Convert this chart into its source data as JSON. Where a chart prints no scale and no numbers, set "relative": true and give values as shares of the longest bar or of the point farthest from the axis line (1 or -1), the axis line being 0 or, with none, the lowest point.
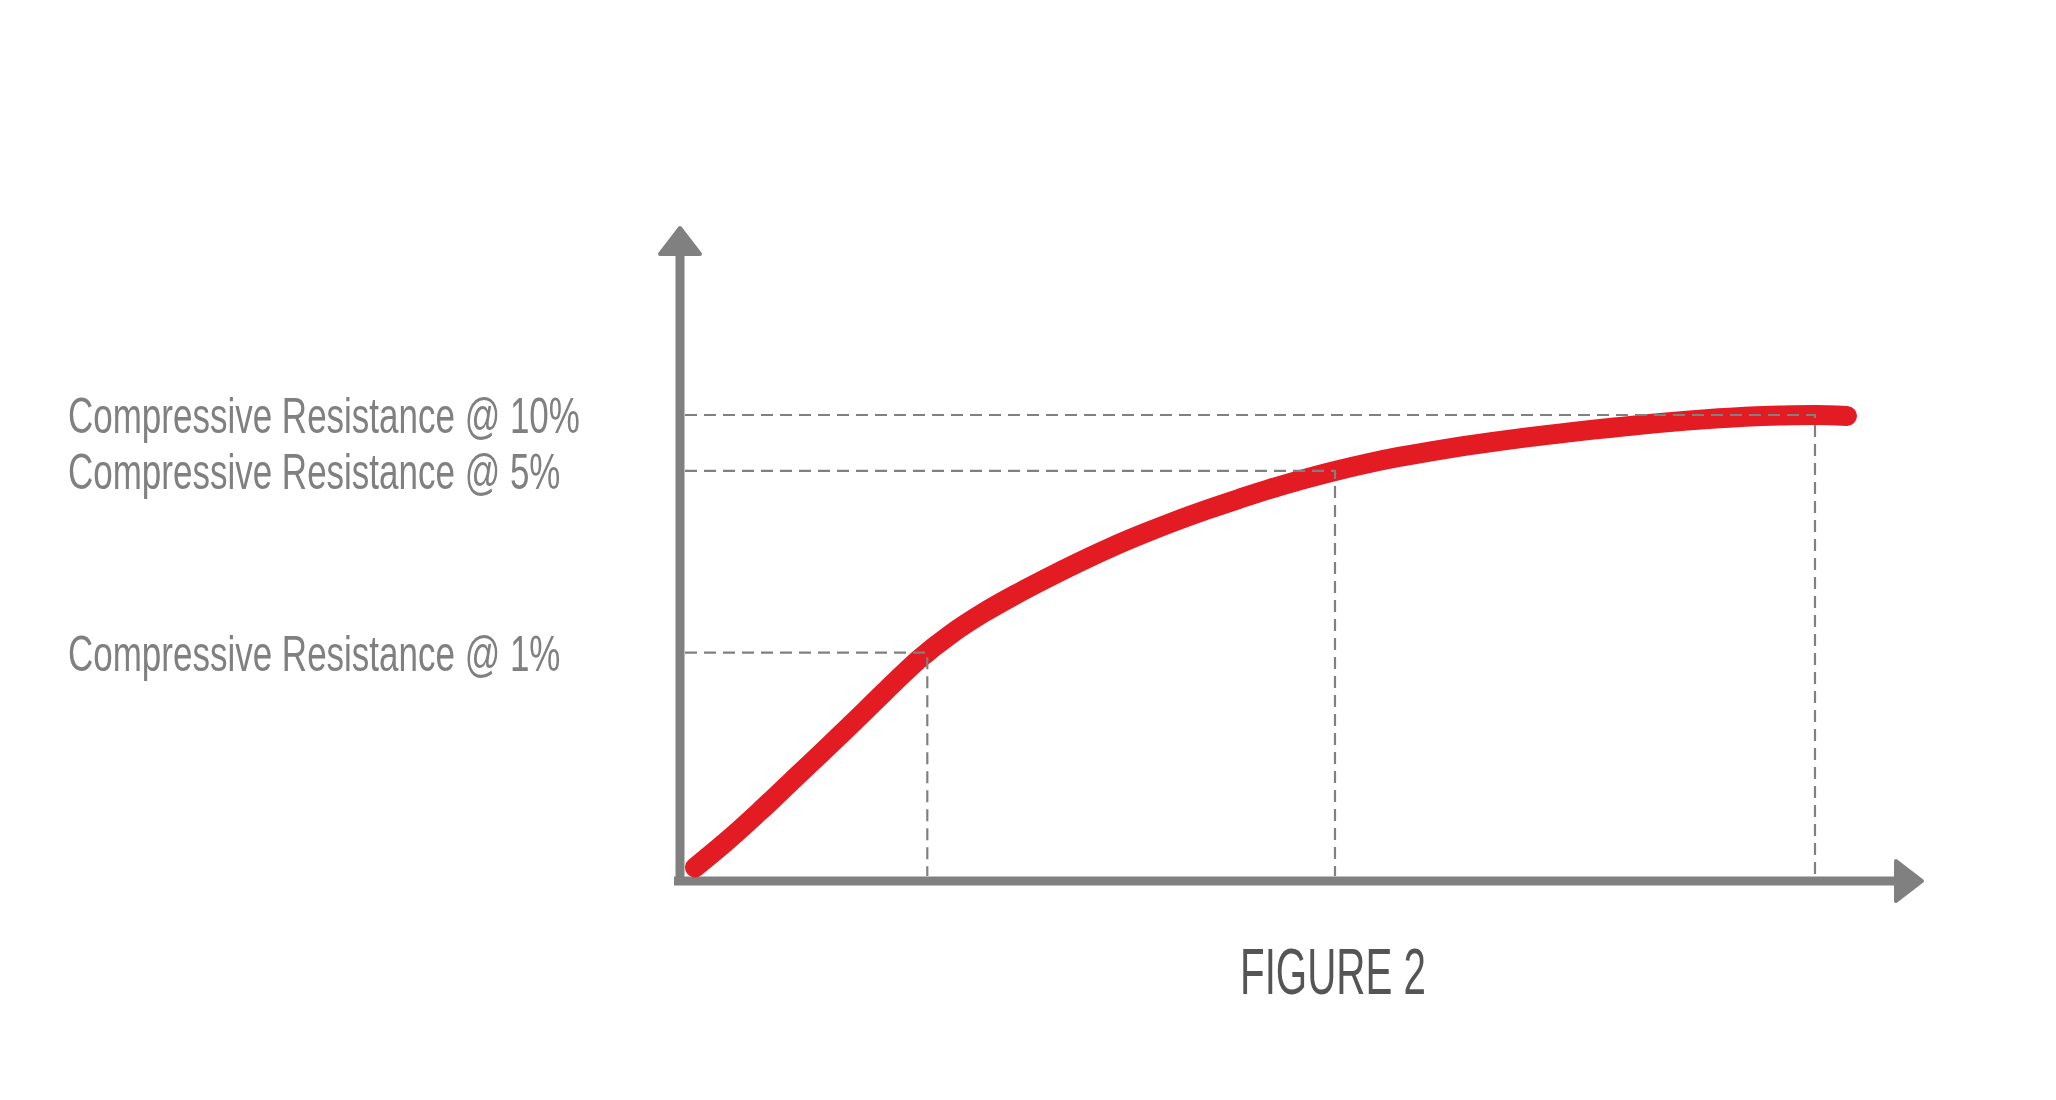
{
  "chart_data": {
    "type": "line",
    "title": "FIGURE 2",
    "relative": true,
    "categories": [
      null,
      null,
      null,
      null,
      null,
      null,
      null,
      null,
      null,
      null,
      null,
      null,
      null,
      null,
      null,
      null,
      null,
      null,
      null,
      null,
      null,
      null,
      null,
      null,
      null,
      null,
      null,
      null,
      null,
      null,
      null,
      null,
      null,
      null,
      null,
      null,
      null
    ],
    "series": [
      {
        "color": "#e31b23",
        "values": [
          0.029,
          0.086,
          0.148,
          0.213,
          0.278,
          0.344,
          0.411,
          0.476,
          0.53,
          0.575,
          0.614,
          0.65,
          0.684,
          0.716,
          0.745,
          0.772,
          0.797,
          0.82,
          0.842,
          0.862,
          0.88,
          0.896,
          0.91,
          0.922,
          0.933,
          0.943,
          0.952,
          0.96,
          0.968,
          0.975,
          0.982,
          0.988,
          0.993,
          0.997,
          0.999,
          1,
          0.998
        ]
      }
    ],
    "ref_lines": [
      {
        "axis": "y",
        "value": 1,
        "label": "Compressive Resistance @ 10%",
        "color": "#808080",
        "line_style": "dashed"
      },
      {
        "axis": "y",
        "value": 0.88,
        "label": "Compressive Resistance @ 5%",
        "color": "#808080",
        "line_style": "dashed"
      },
      {
        "axis": "y",
        "value": 0.49,
        "label": "Compressive Resistance @ 1%",
        "color": "#808080",
        "line_style": "dashed"
      }
    ]
  }
}
